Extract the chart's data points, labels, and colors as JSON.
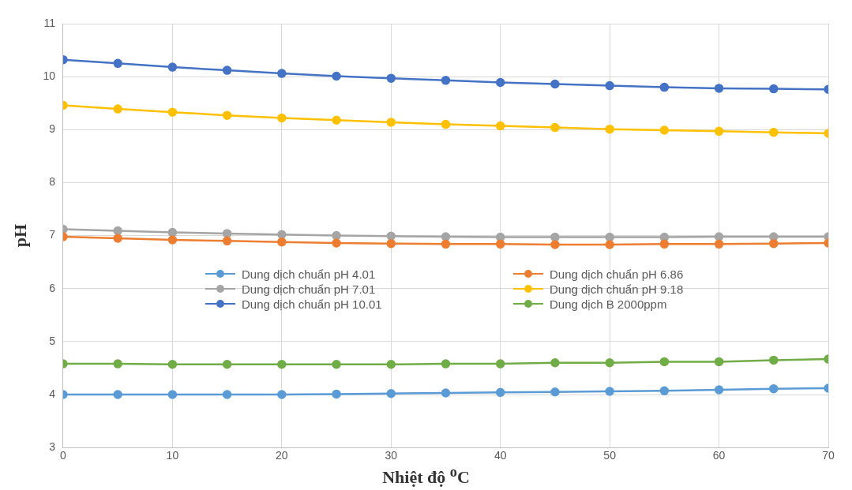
{
  "chart_data": {
    "type": "line",
    "xlabel": "Nhiệt độ $^{o}$C",
    "ylabel": "pH",
    "x": [
      0,
      5,
      10,
      15,
      20,
      25,
      30,
      35,
      40,
      45,
      50,
      55,
      60,
      65,
      70
    ],
    "xlim": [
      0,
      70
    ],
    "xticks": [
      0,
      10,
      20,
      30,
      40,
      50,
      60,
      70
    ],
    "ylim": [
      3,
      11
    ],
    "yticks": [
      3,
      4,
      5,
      6,
      7,
      8,
      9,
      10,
      11
    ],
    "grid": true,
    "legend": "left",
    "marker": "circle",
    "line_style": "solid",
    "series": [
      {
        "name": "Dung dịch chuẩn pH 4.01",
        "color": "#5b9bd5",
        "values": [
          4.0,
          4.0,
          4.0,
          4.0,
          4.0,
          4.01,
          4.02,
          4.03,
          4.04,
          4.05,
          4.06,
          4.07,
          4.09,
          4.11,
          4.12
        ]
      },
      {
        "name": "Dung dịch chuẩn pH 6.86",
        "color": "#ed7d31",
        "values": [
          6.98,
          6.95,
          6.92,
          6.9,
          6.88,
          6.86,
          6.85,
          6.84,
          6.84,
          6.83,
          6.83,
          6.84,
          6.84,
          6.85,
          6.86
        ]
      },
      {
        "name": "Dung dịch chuẩn pH 7.01",
        "color": "#a5a5a5",
        "values": [
          7.12,
          7.09,
          7.06,
          7.04,
          7.02,
          7.0,
          6.99,
          6.98,
          6.97,
          6.97,
          6.97,
          6.97,
          6.98,
          6.98,
          6.98
        ]
      },
      {
        "name": "Dung dịch chuẩn pH 9.18",
        "color": "#ffc000",
        "values": [
          9.46,
          9.39,
          9.33,
          9.27,
          9.22,
          9.18,
          9.14,
          9.1,
          9.07,
          9.04,
          9.01,
          8.99,
          8.97,
          8.95,
          8.93
        ]
      },
      {
        "name": "Dung dịch chuẩn pH 10.01",
        "color": "#4472c4",
        "values": [
          10.32,
          10.25,
          10.18,
          10.12,
          10.06,
          10.01,
          9.97,
          9.93,
          9.89,
          9.86,
          9.83,
          9.8,
          9.78,
          9.77,
          9.76
        ]
      },
      {
        "name": "Dung dịch B 2000ppm",
        "color": "#70ad47",
        "values": [
          4.58,
          4.58,
          4.57,
          4.57,
          4.57,
          4.57,
          4.57,
          4.58,
          4.58,
          4.6,
          4.6,
          4.62,
          4.62,
          4.65,
          4.67
        ]
      }
    ]
  }
}
